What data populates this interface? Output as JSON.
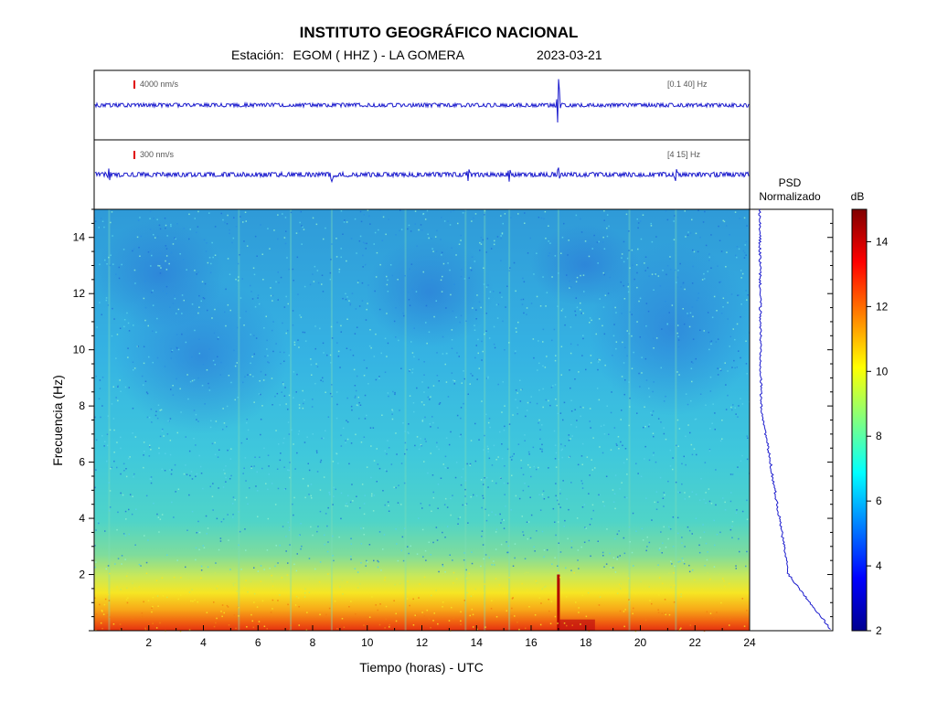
{
  "header": {
    "title": "INSTITUTO GEOGRÁFICO NACIONAL",
    "station_label": "Estación:",
    "station": "EGOM ( HHZ ) - LA GOMERA",
    "date": "2023-03-21"
  },
  "chart_data": [
    {
      "type": "line",
      "panel": "seismogram-broadband",
      "scale_label": "4000 nm/s",
      "band_label": "[0.1 40] Hz",
      "x_range": [
        0,
        24
      ],
      "events_hours": [
        17.0
      ],
      "color": "#1a1acd"
    },
    {
      "type": "line",
      "panel": "seismogram-filtered",
      "scale_label": "300 nm/s",
      "band_label": "[4 15] Hz",
      "x_range": [
        0,
        24
      ],
      "events_hours": [
        0.55,
        8.7,
        13.7,
        15.2,
        17.0,
        21.3
      ],
      "color": "#1a1acd"
    },
    {
      "type": "heatmap",
      "panel": "spectrogram",
      "xlabel": "Tiempo (horas) - UTC",
      "ylabel": "Frecuencia (Hz)",
      "xlim": [
        0,
        24
      ],
      "ylim": [
        0,
        15
      ],
      "x_ticks": [
        2,
        4,
        6,
        8,
        10,
        12,
        14,
        16,
        18,
        20,
        22,
        24
      ],
      "y_ticks": [
        2,
        4,
        6,
        8,
        10,
        12,
        14
      ],
      "low_freq_band_hz": [
        0,
        2
      ],
      "event_hour": 17.0
    },
    {
      "type": "line",
      "panel": "psd",
      "title_line1": "PSD",
      "title_line2": "Normalizado",
      "ylim": [
        0,
        15
      ]
    },
    {
      "type": "colorbar",
      "unit": "dB",
      "range": [
        2,
        15
      ],
      "ticks": [
        2,
        4,
        6,
        8,
        10,
        12,
        14
      ],
      "colors": [
        "#00008f",
        "#0000ff",
        "#0080ff",
        "#00ffff",
        "#80ff80",
        "#ffff00",
        "#ff8000",
        "#ff0000",
        "#800000"
      ]
    }
  ]
}
